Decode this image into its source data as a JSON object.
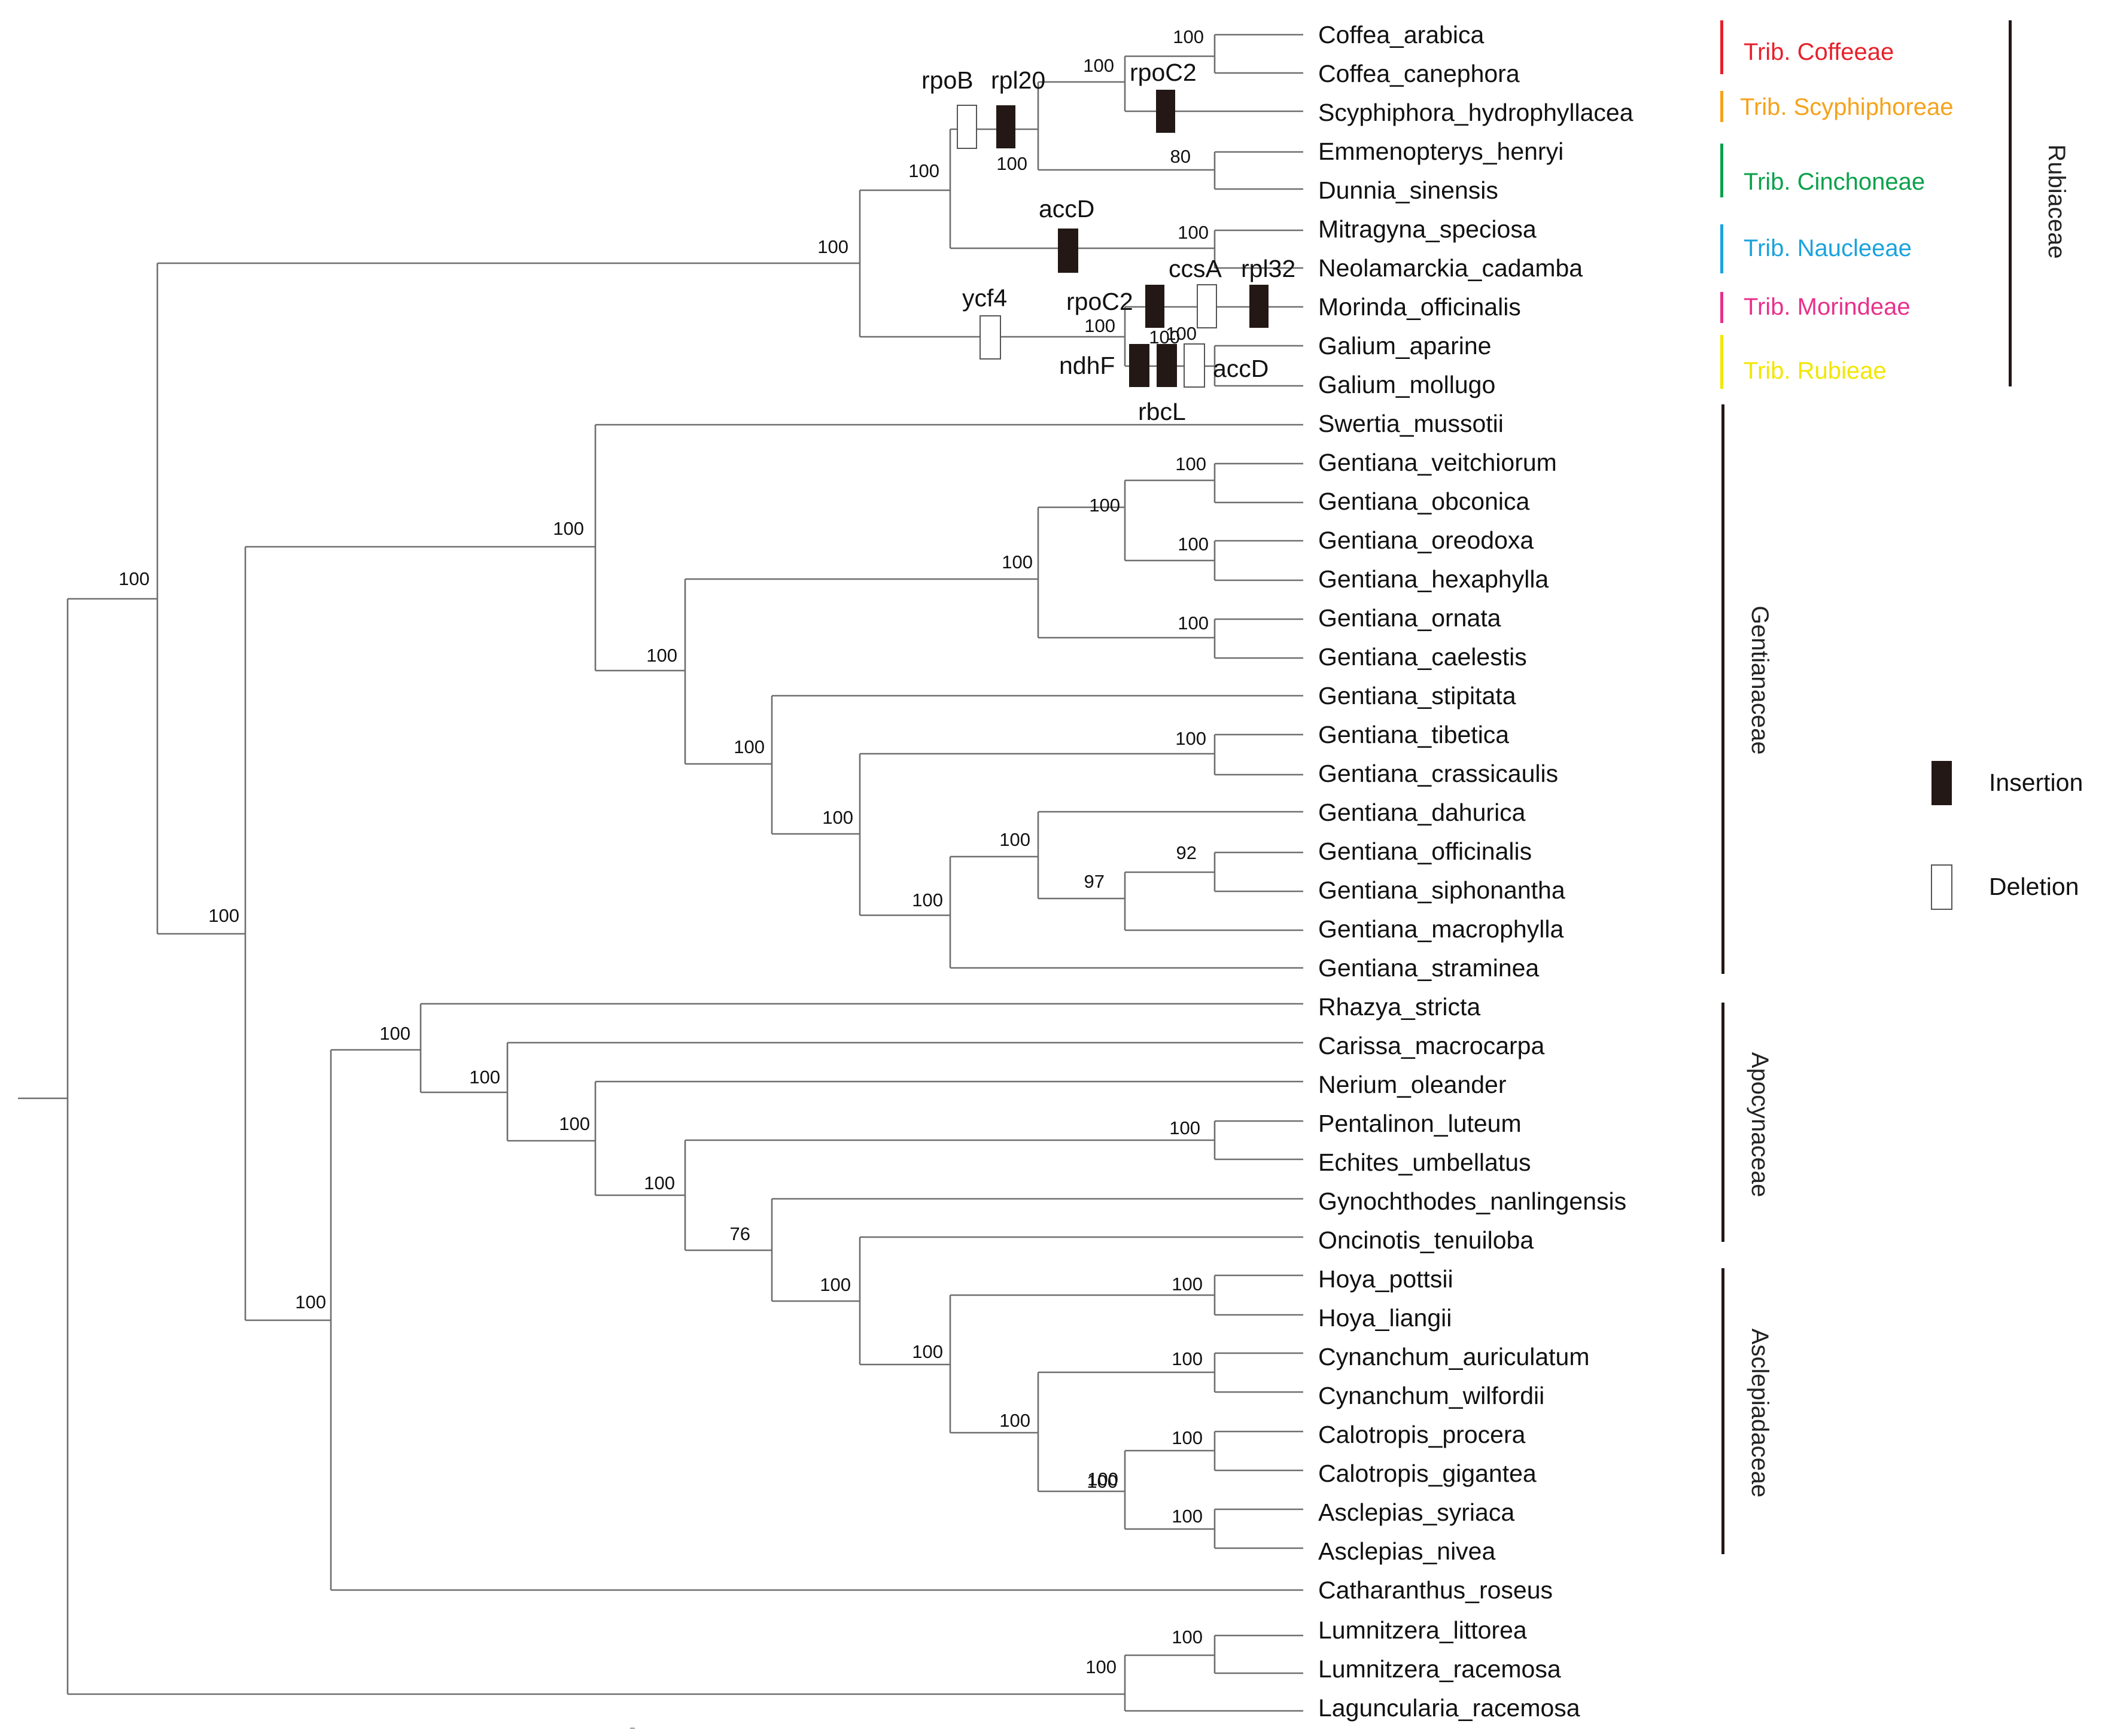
{
  "taxa": [
    "Coffea_arabica",
    "Coffea_canephora",
    "Scyphiphora_hydrophyllacea",
    "Emmenopterys_henryi",
    "Dunnia_sinensis",
    "Mitragyna_speciosa",
    "Neolamarckia_cadamba",
    "Morinda_officinalis",
    "Galium_aparine",
    "Galium_mollugo",
    "Swertia_mussotii",
    "Gentiana_veitchiorum",
    "Gentiana_obconica",
    "Gentiana_oreodoxa",
    "Gentiana_hexaphylla",
    "Gentiana_ornata",
    "Gentiana_caelestis",
    "Gentiana_stipitata",
    "Gentiana_tibetica",
    "Gentiana_crassicaulis",
    "Gentiana_dahurica",
    "Gentiana_officinalis",
    "Gentiana_siphonantha",
    "Gentiana_macrophylla",
    "Gentiana_straminea",
    "Rhazya_stricta",
    "Carissa_macrocarpa",
    "Nerium_oleander",
    "Pentalinon_luteum",
    "Echites_umbellatus",
    "Gynochthodes_nanlingensis",
    "Oncinotis_tenuiloba",
    "Hoya_pottsii",
    "Hoya_liangii",
    "Cynanchum_auriculatum",
    "Cynanchum_wilfordii",
    "Calotropis_procera",
    "Calotropis_gigantea",
    "Asclepias_syriaca",
    "Asclepias_nivea",
    "Catharanthus_roseus",
    "Lumnitzera_littorea",
    "Lumnitzera_racemosa",
    "Laguncularia_racemosa"
  ],
  "support_values": [
    "100",
    "100",
    "100",
    "100",
    "80",
    "100",
    "100",
    "100",
    "100",
    "100",
    "100",
    "100",
    "100",
    "100",
    "100",
    "100",
    "100",
    "100",
    "100",
    "100",
    "100",
    "92",
    "97",
    "100",
    "100",
    "100",
    "100",
    "100",
    "100",
    "100",
    "76",
    "100",
    "100",
    "100",
    "100",
    "100",
    "100",
    "100",
    "100",
    "100",
    "100",
    "100",
    "100",
    "100"
  ],
  "genes": [
    "rpoB",
    "rpl20",
    "rpoC2",
    "accD",
    "ycf4",
    "rpoC2",
    "ccsA",
    "rpl32",
    "ndhF",
    "rbcL",
    "accD"
  ],
  "tribes": [
    {
      "label": "Trib. Coffeeae",
      "color": "#e8202a"
    },
    {
      "label": "Trib. Scyphiphoreae",
      "color": "#f5a21b"
    },
    {
      "label": "Trib. Cinchoneae",
      "color": "#0aa14b"
    },
    {
      "label": "Trib. Naucleeae",
      "color": "#1aa3dc"
    },
    {
      "label": "Trib. Morindeae",
      "color": "#e8308a"
    },
    {
      "label": "Trib. Rubieae",
      "color": "#f2e600"
    }
  ],
  "families": [
    "Rubiaceae",
    "Gentianaceae",
    "Apocynaceae",
    "Asclepiadaceae"
  ],
  "legend": {
    "insertion": "Insertion",
    "deletion": "Deletion"
  },
  "colors": {
    "insertion": "#231815",
    "deletion": "#ffffff",
    "branch": "#6e6e6e"
  }
}
